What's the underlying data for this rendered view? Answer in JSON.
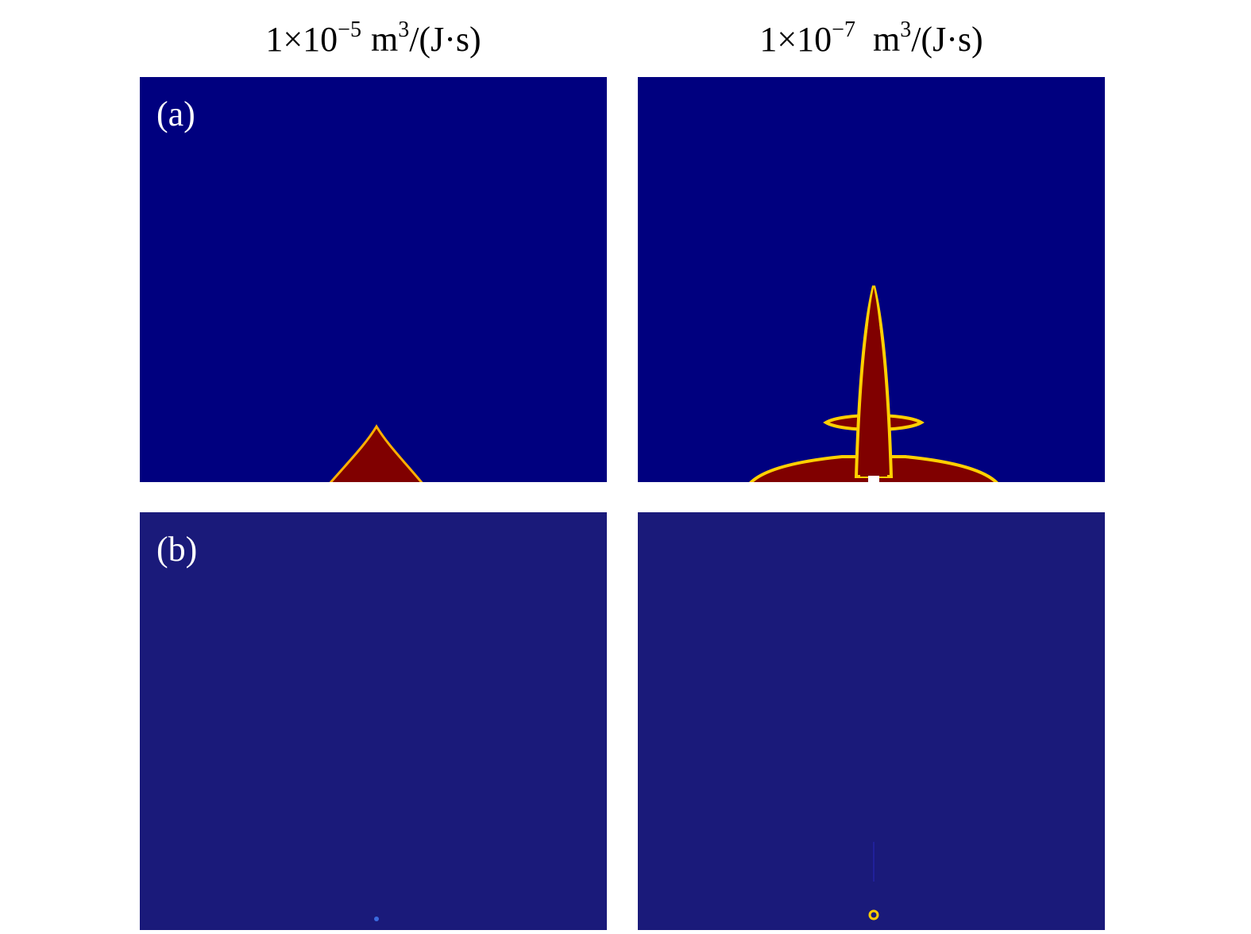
{
  "column_headers": [
    {
      "base": "1×10",
      "exponent": "−5",
      "unit": "m",
      "unit_exponent": "3",
      "unit_rest": "/(J·s)"
    },
    {
      "base": "1×10",
      "exponent": "−7",
      "unit": "m",
      "unit_exponent": "3",
      "unit_rest": "/(J·s)"
    }
  ],
  "row_labels": [
    "(a)",
    "(b)"
  ]
}
